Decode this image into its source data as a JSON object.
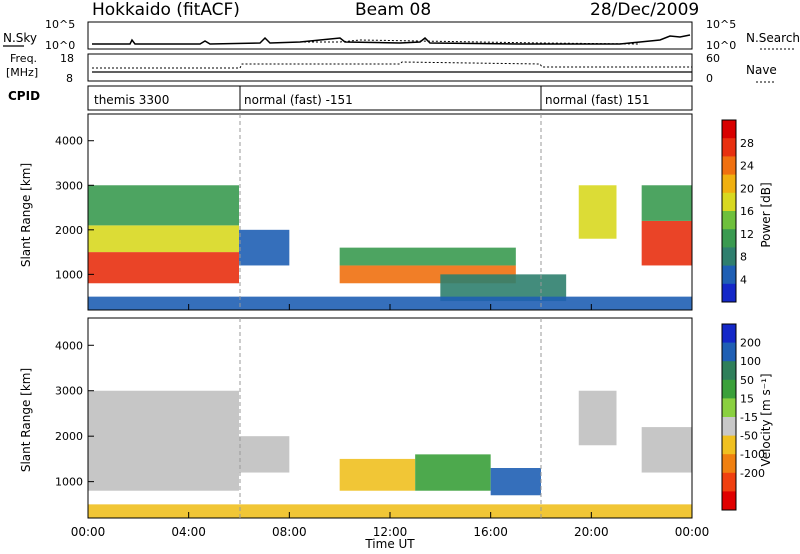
{
  "header": {
    "station": "Hokkaido (fitACF)",
    "beam": "Beam 08",
    "date": "28/Dec/2009"
  },
  "panels": {
    "nsky_label": "N.Sky",
    "freq_label_1": "Freq.",
    "freq_label_2": "[MHz]",
    "cpid_label": "CPID",
    "nsearch_label": "N.Search",
    "nave_label": "Nave",
    "nsky_ticks": [
      "10^5",
      "10^0"
    ],
    "nsearch_ticks": [
      "10^5",
      "10^0"
    ],
    "freq_ticks": [
      "18",
      "8"
    ],
    "nave_ticks": [
      "60",
      "0"
    ],
    "cpid_segments": [
      {
        "label": "themis 3300",
        "start_hour": 0
      },
      {
        "label": "normal (fast) -151",
        "start_hour": 6
      },
      {
        "label": "normal (fast) 151",
        "start_hour": 18
      }
    ]
  },
  "colors": {
    "power_scale": [
      "#1428c8",
      "#1f5fb4",
      "#2f7f6e",
      "#3a9a50",
      "#6ec03c",
      "#d8d820",
      "#f0b010",
      "#f07010",
      "#e83010",
      "#d80000"
    ],
    "velocity_scale": [
      "#1428c8",
      "#1f5fb4",
      "#2f7f5a",
      "#3aa03a",
      "#8ad040",
      "#c8c8c8",
      "#f0c020",
      "#f08010",
      "#f04010",
      "#e00000"
    ],
    "ground_scatter": "#c0c0c0"
  },
  "chart_data": [
    {
      "type": "heatmap",
      "name": "power",
      "xlabel": "",
      "ylabel": "Slant Range [km]",
      "xlim_hours": [
        0,
        24
      ],
      "ylim_km": [
        200,
        4600
      ],
      "y_ticks": [
        "1000",
        "2000",
        "3000",
        "4000"
      ],
      "colorbar_label": "Power [dB]",
      "colorbar_ticks": [
        "4",
        "8",
        "12",
        "16",
        "20",
        "24",
        "28"
      ],
      "colorbar_range": [
        0,
        32
      ],
      "regions": [
        {
          "x0": 0.0,
          "x1": 6.0,
          "y0": 800,
          "y1": 1500,
          "value": 26
        },
        {
          "x0": 0.0,
          "x1": 6.0,
          "y0": 1500,
          "y1": 2100,
          "value": 16
        },
        {
          "x0": 0.0,
          "x1": 6.0,
          "y0": 2100,
          "y1": 3000,
          "value": 10
        },
        {
          "x0": 6.0,
          "x1": 8.0,
          "y0": 1200,
          "y1": 2000,
          "value": 6
        },
        {
          "x0": 10.0,
          "x1": 17.0,
          "y0": 800,
          "y1": 1200,
          "value": 24
        },
        {
          "x0": 10.0,
          "x1": 17.0,
          "y0": 1200,
          "y1": 1600,
          "value": 10
        },
        {
          "x0": 14.0,
          "x1": 19.0,
          "y0": 400,
          "y1": 1000,
          "value": 8
        },
        {
          "x0": 19.5,
          "x1": 21.0,
          "y0": 1800,
          "y1": 3000,
          "value": 18
        },
        {
          "x0": 22.0,
          "x1": 24.0,
          "y0": 1200,
          "y1": 2200,
          "value": 26
        },
        {
          "x0": 22.0,
          "x1": 24.0,
          "y0": 2200,
          "y1": 3000,
          "value": 12
        },
        {
          "x0": 0.0,
          "x1": 24.0,
          "y0": 200,
          "y1": 500,
          "value": 6
        }
      ],
      "time_labels": [
        "00:00",
        "04:00",
        "08:00",
        "12:00",
        "16:00",
        "20:00",
        "00:00"
      ]
    },
    {
      "type": "heatmap",
      "name": "velocity",
      "xlabel": "Time UT",
      "ylabel": "Slant Range [km]",
      "xlim_hours": [
        0,
        24
      ],
      "ylim_km": [
        200,
        4600
      ],
      "y_ticks": [
        "1000",
        "2000",
        "3000",
        "4000"
      ],
      "colorbar_label": "Velocity [m s⁻¹]",
      "colorbar_ticks": [
        "200",
        "100",
        "50",
        "15",
        "-15",
        "-50",
        "-100",
        "-200"
      ],
      "regions": [
        {
          "x0": 0.0,
          "x1": 6.0,
          "y0": 800,
          "y1": 3000,
          "value": 0,
          "ground": true
        },
        {
          "x0": 6.0,
          "x1": 8.0,
          "y0": 1200,
          "y1": 2000,
          "value": 0,
          "ground": true
        },
        {
          "x0": 10.0,
          "x1": 13.0,
          "y0": 800,
          "y1": 1500,
          "value": -80
        },
        {
          "x0": 13.0,
          "x1": 16.0,
          "y0": 800,
          "y1": 1600,
          "value": 40
        },
        {
          "x0": 16.0,
          "x1": 18.0,
          "y0": 700,
          "y1": 1300,
          "value": 120
        },
        {
          "x0": 19.5,
          "x1": 21.0,
          "y0": 1800,
          "y1": 3000,
          "value": 0,
          "ground": true
        },
        {
          "x0": 22.0,
          "x1": 24.0,
          "y0": 1200,
          "y1": 2200,
          "value": 0,
          "ground": true
        },
        {
          "x0": 0.0,
          "x1": 24.0,
          "y0": 200,
          "y1": 500,
          "value": -60
        }
      ],
      "time_labels": [
        "00:00",
        "04:00",
        "08:00",
        "12:00",
        "16:00",
        "20:00",
        "00:00"
      ]
    }
  ]
}
